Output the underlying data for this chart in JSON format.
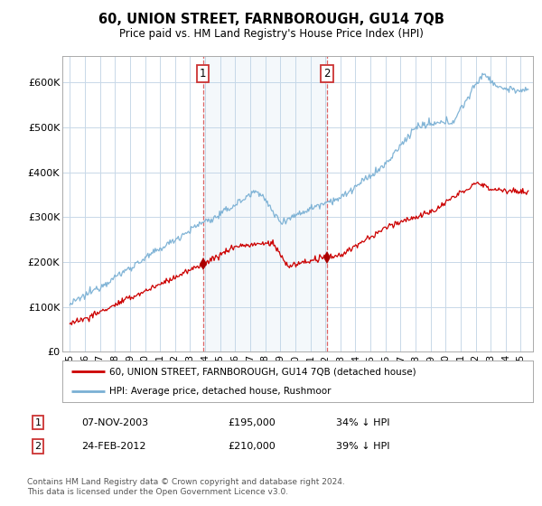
{
  "title": "60, UNION STREET, FARNBOROUGH, GU14 7QB",
  "subtitle": "Price paid vs. HM Land Registry's House Price Index (HPI)",
  "hpi_color": "#7ab0d4",
  "price_color": "#cc0000",
  "marker_color": "#aa0000",
  "background_color": "#ffffff",
  "plot_bg_color": "#ffffff",
  "grid_color": "#c8d8e8",
  "ylim": [
    0,
    660000
  ],
  "yticks": [
    0,
    100000,
    200000,
    300000,
    400000,
    500000,
    600000
  ],
  "ytick_labels": [
    "£0",
    "£100K",
    "£200K",
    "£300K",
    "£400K",
    "£500K",
    "£600K"
  ],
  "sale1_price": 195000,
  "sale1_x": 2003.85,
  "sale1_label": "1",
  "sale2_price": 210000,
  "sale2_x": 2012.12,
  "sale2_label": "2",
  "legend_line1": "60, UNION STREET, FARNBOROUGH, GU14 7QB (detached house)",
  "legend_line2": "HPI: Average price, detached house, Rushmoor",
  "footnote": "Contains HM Land Registry data © Crown copyright and database right 2024.\nThis data is licensed under the Open Government Licence v3.0.",
  "table_row1": [
    "1",
    "07-NOV-2003",
    "£195,000",
    "34% ↓ HPI"
  ],
  "table_row2": [
    "2",
    "24-FEB-2012",
    "£210,000",
    "39% ↓ HPI"
  ],
  "xmin": 1994.5,
  "xmax": 2025.8
}
